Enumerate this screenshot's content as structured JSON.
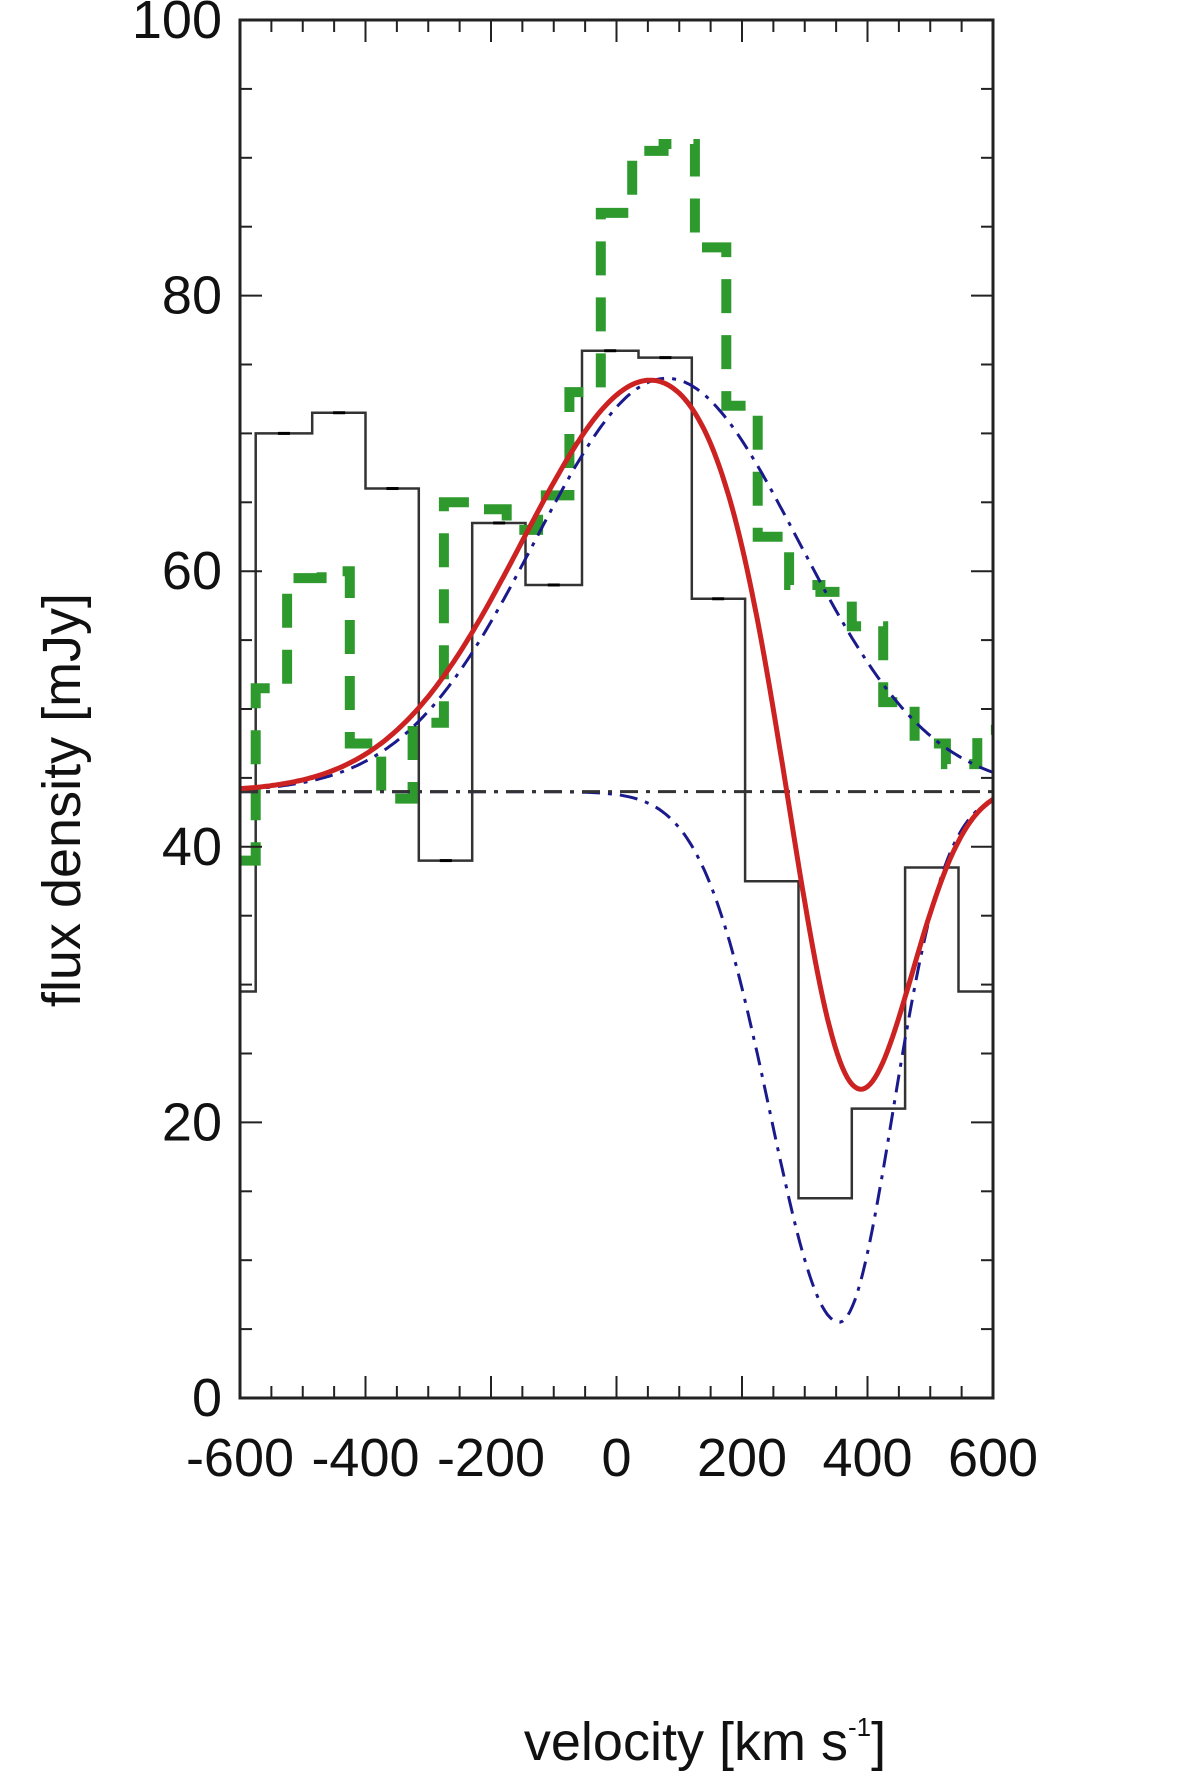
{
  "chart_data": {
    "type": "line",
    "title": "",
    "xlabel": "velocity [km s",
    "xlabel_sup": "-1",
    "xlabel_end": "]",
    "ylabel": "flux density [mJy]",
    "xlim": [
      -600,
      600
    ],
    "ylim": [
      0,
      100
    ],
    "x_ticks": [
      -600,
      -400,
      -200,
      0,
      200,
      400,
      600
    ],
    "x_tick_labels": [
      "-600",
      "-400",
      "-200",
      "0",
      "200",
      "400",
      "600"
    ],
    "y_ticks": [
      0,
      20,
      40,
      60,
      80,
      100
    ],
    "y_tick_labels": [
      "0",
      "20",
      "40",
      "60",
      "80",
      "100"
    ],
    "grid": false,
    "series": [
      {
        "kind": "step",
        "color": "#333333",
        "style": "solid",
        "bin_edges": [
          -600,
          -575,
          -485,
          -400,
          -315,
          -230,
          -145,
          -55,
          35,
          120,
          205,
          290,
          375,
          460,
          545,
          600
        ],
        "values": [
          29.5,
          70,
          71.5,
          66,
          39,
          63.5,
          59,
          76,
          75.5,
          58,
          37.5,
          14.5,
          21,
          38.5,
          29.5
        ],
        "bin_markers_x": [
          -530,
          -442,
          -357,
          -272,
          -187,
          -100,
          -10,
          78,
          162
        ],
        "bin_markers_y": [
          70,
          71.5,
          66,
          39,
          63.5,
          59,
          76,
          75.5,
          58
        ]
      },
      {
        "kind": "step",
        "color": "#2e9a2e",
        "style": "dashed",
        "bin_edges": [
          -600,
          -575,
          -525,
          -470,
          -425,
          -375,
          -325,
          -275,
          -225,
          -175,
          -125,
          -75,
          -25,
          25,
          75,
          125,
          175,
          225,
          275,
          325,
          375,
          425,
          475,
          525,
          575,
          600
        ],
        "values": [
          39,
          51.5,
          59.5,
          60,
          47.5,
          43.5,
          49,
          65,
          64.5,
          63,
          65.5,
          73,
          86,
          90.5,
          91,
          83.5,
          72,
          62.5,
          59,
          58.5,
          56,
          50.5,
          47.5,
          46,
          48.5
        ]
      },
      {
        "kind": "curve",
        "color": "#1a1a8c",
        "style": "dash-dot",
        "continuum": 44,
        "amplitude": 30,
        "center": 80,
        "sigma_left": 210,
        "sigma_right": 210,
        "range": [
          -600,
          600
        ]
      },
      {
        "kind": "curve",
        "color": "#1a1a8c",
        "style": "dash-dot",
        "continuum": 44,
        "amplitude": -38.5,
        "center": 355,
        "sigma_left": 110,
        "sigma_right": 85,
        "range": [
          -600,
          600
        ]
      },
      {
        "kind": "hline",
        "color": "#333333",
        "style": "dash-dot",
        "y": 44
      },
      {
        "kind": "curve",
        "color": "#cc2222",
        "style": "solid",
        "continuum": 44,
        "components": [
          {
            "amplitude": 30,
            "center": 60,
            "sigma": 210
          },
          {
            "amplitude": -31,
            "center": 370,
            "sigma": 95
          }
        ],
        "range": [
          -600,
          600
        ]
      }
    ]
  }
}
